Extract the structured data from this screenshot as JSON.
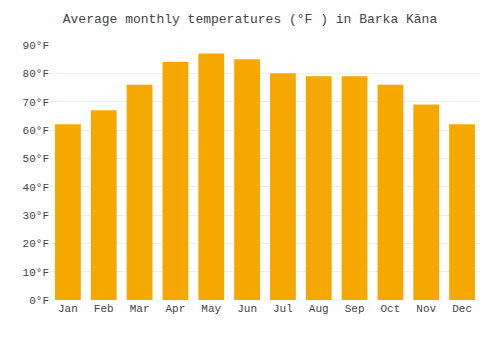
{
  "chart_data": {
    "type": "bar",
    "title": "Average monthly temperatures (°F ) in Barka Kāna",
    "categories": [
      "Jan",
      "Feb",
      "Mar",
      "Apr",
      "May",
      "Jun",
      "Jul",
      "Aug",
      "Sep",
      "Oct",
      "Nov",
      "Dec"
    ],
    "values": [
      62,
      67,
      76,
      84,
      87,
      85,
      80,
      79,
      79,
      76,
      69,
      62
    ],
    "color": "#F5A800",
    "ylim": [
      0,
      90
    ],
    "yticks": [
      {
        "value": 0,
        "label": "0°F"
      },
      {
        "value": 10,
        "label": "10°F"
      },
      {
        "value": 20,
        "label": "20°F"
      },
      {
        "value": 30,
        "label": "30°F"
      },
      {
        "value": 40,
        "label": "40°F"
      },
      {
        "value": 50,
        "label": "50°F"
      },
      {
        "value": 60,
        "label": "60°F"
      },
      {
        "value": 70,
        "label": "70°F"
      },
      {
        "value": 80,
        "label": "80°F"
      },
      {
        "value": 90,
        "label": "90°F"
      }
    ],
    "grid": true
  }
}
